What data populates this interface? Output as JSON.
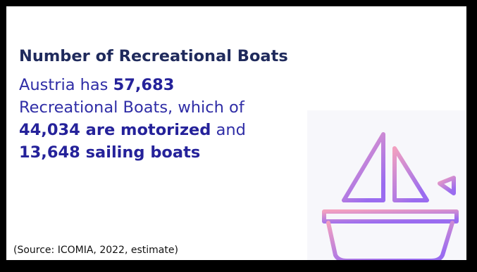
{
  "card": {
    "title": "Number of Recreational Boats",
    "line1_prefix": "Austria has ",
    "total_boats": "57,683",
    "line2": "Recreational Boats, which of",
    "motorized": "44,034 are motorized",
    "line3_suffix": " and",
    "sailing": "13,648 sailing boats",
    "source": "(Source: ICOMIA, 2022, estimate)"
  },
  "illustration": {
    "icon": "sailboat-icon",
    "gradient_start": "#f2a0c0",
    "gradient_end": "#9a6cf0"
  }
}
